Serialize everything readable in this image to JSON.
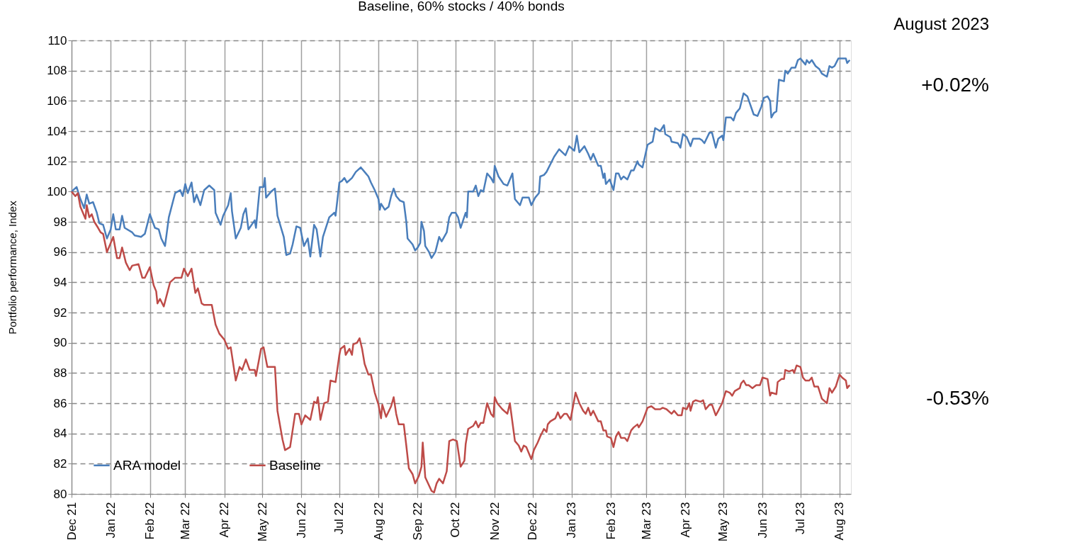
{
  "chart_data": {
    "type": "line",
    "title": "Baseline, 60% stocks / 40% bonds",
    "ylabel": "Portfolio performance, Index",
    "annotations": [
      "August 2023",
      "+0.02%",
      "-0.53%"
    ],
    "xlim": [
      "2021-12-01",
      "2023-08-10"
    ],
    "xticks": [
      {
        "value": "2021-12-01",
        "label": "Dec 21"
      },
      {
        "value": "2022-01-01",
        "label": "Jan 22"
      },
      {
        "value": "2022-02-01",
        "label": "Feb 22"
      },
      {
        "value": "2022-03-01",
        "label": "Mar 22"
      },
      {
        "value": "2022-04-01",
        "label": "Apr 22"
      },
      {
        "value": "2022-05-01",
        "label": "May 22"
      },
      {
        "value": "2022-06-01",
        "label": "Jun 22"
      },
      {
        "value": "2022-07-01",
        "label": "Jul 22"
      },
      {
        "value": "2022-08-01",
        "label": "Aug 22"
      },
      {
        "value": "2022-09-01",
        "label": "Sep 22"
      },
      {
        "value": "2022-10-01",
        "label": "Oct 22"
      },
      {
        "value": "2022-11-01",
        "label": "Nov 22"
      },
      {
        "value": "2022-12-01",
        "label": "Dec 22"
      },
      {
        "value": "2023-01-01",
        "label": "Jan 23"
      },
      {
        "value": "2023-02-01",
        "label": "Feb 23"
      },
      {
        "value": "2023-03-01",
        "label": "Mar 23"
      },
      {
        "value": "2023-04-01",
        "label": "Apr 23"
      },
      {
        "value": "2023-05-01",
        "label": "May 23"
      },
      {
        "value": "2023-06-01",
        "label": "Jun 23"
      },
      {
        "value": "2023-07-01",
        "label": "Jul 23"
      },
      {
        "value": "2023-08-01",
        "label": "Aug 23"
      }
    ],
    "ylim": [
      80,
      110
    ],
    "yticks": [
      80,
      82,
      84,
      86,
      88,
      90,
      92,
      94,
      96,
      98,
      100,
      102,
      104,
      106,
      108,
      110
    ],
    "grid": true,
    "legend": "bottom left",
    "line_style": "solid",
    "series": [
      {
        "name": "ARA model",
        "color": "#4a7ebb",
        "x": [
          "2021-12-01",
          "2021-12-05",
          "2021-12-08",
          "2021-12-11",
          "2021-12-13",
          "2021-12-15",
          "2021-12-18",
          "2021-12-21",
          "2021-12-23",
          "2021-12-26",
          "2021-12-29",
          "2022-01-01",
          "2022-01-03",
          "2022-01-05",
          "2022-01-08",
          "2022-01-10",
          "2022-01-12",
          "2022-01-18",
          "2022-01-20",
          "2022-01-25",
          "2022-01-28",
          "2022-02-01",
          "2022-02-05",
          "2022-02-08",
          "2022-02-10",
          "2022-02-13",
          "2022-02-16",
          "2022-02-21",
          "2022-02-25",
          "2022-02-27",
          "2022-03-01",
          "2022-03-03",
          "2022-03-06",
          "2022-03-08",
          "2022-03-10",
          "2022-03-13",
          "2022-03-16",
          "2022-03-20",
          "2022-03-24",
          "2022-03-25",
          "2022-03-29",
          "2022-03-31",
          "2022-04-04",
          "2022-04-06",
          "2022-04-07",
          "2022-04-10",
          "2022-04-14",
          "2022-04-16",
          "2022-04-18",
          "2022-04-20",
          "2022-04-25",
          "2022-04-26",
          "2022-04-29",
          "2022-05-02",
          "2022-05-03",
          "2022-05-04",
          "2022-05-08",
          "2022-05-11",
          "2022-05-13",
          "2022-05-18",
          "2022-05-20",
          "2022-05-23",
          "2022-05-25",
          "2022-05-28",
          "2022-05-31",
          "2022-06-03",
          "2022-06-06",
          "2022-06-08",
          "2022-06-11",
          "2022-06-13",
          "2022-06-16",
          "2022-06-18",
          "2022-06-23",
          "2022-06-27",
          "2022-06-28",
          "2022-07-01",
          "2022-07-03",
          "2022-07-05",
          "2022-07-07",
          "2022-07-11",
          "2022-07-14",
          "2022-07-18",
          "2022-07-21",
          "2022-07-24",
          "2022-07-26",
          "2022-07-29",
          "2022-08-01",
          "2022-08-02",
          "2022-08-03",
          "2022-08-06",
          "2022-08-09",
          "2022-08-11",
          "2022-08-13",
          "2022-08-15",
          "2022-08-18",
          "2022-08-21",
          "2022-08-23",
          "2022-08-24",
          "2022-08-28",
          "2022-08-30",
          "2022-09-01",
          "2022-09-03",
          "2022-09-04",
          "2022-09-06",
          "2022-09-07",
          "2022-09-10",
          "2022-09-12",
          "2022-09-15",
          "2022-09-18",
          "2022-09-20",
          "2022-09-24",
          "2022-09-26",
          "2022-09-28",
          "2022-10-01",
          "2022-10-03",
          "2022-10-05",
          "2022-10-07",
          "2022-10-09",
          "2022-10-10",
          "2022-10-11",
          "2022-10-15",
          "2022-10-17",
          "2022-10-19",
          "2022-10-21",
          "2022-10-23",
          "2022-10-26",
          "2022-10-29",
          "2022-10-31",
          "2022-11-01",
          "2022-11-04",
          "2022-11-08",
          "2022-11-11",
          "2022-11-15",
          "2022-11-17",
          "2022-11-21",
          "2022-11-23",
          "2022-11-28",
          "2022-11-30",
          "2022-12-03",
          "2022-12-06",
          "2022-12-07",
          "2022-12-10",
          "2022-12-12",
          "2022-12-18",
          "2022-12-22",
          "2022-12-27",
          "2022-12-30",
          "2023-01-03",
          "2023-01-05",
          "2023-01-07",
          "2023-01-11",
          "2023-01-14",
          "2023-01-16",
          "2023-01-18",
          "2023-01-22",
          "2023-01-24",
          "2023-01-26",
          "2023-01-27",
          "2023-01-28",
          "2023-01-31",
          "2023-02-03",
          "2023-02-05",
          "2023-02-07",
          "2023-02-09",
          "2023-02-11",
          "2023-02-14",
          "2023-02-17",
          "2023-02-19",
          "2023-02-22",
          "2023-02-23",
          "2023-02-26",
          "2023-03-02",
          "2023-03-06",
          "2023-03-08",
          "2023-03-12",
          "2023-03-15",
          "2023-03-16",
          "2023-03-20",
          "2023-03-21",
          "2023-03-26",
          "2023-03-28",
          "2023-03-30",
          "2023-04-02",
          "2023-04-05",
          "2023-04-07",
          "2023-04-12",
          "2023-04-14",
          "2023-04-16",
          "2023-04-20",
          "2023-04-22",
          "2023-04-25",
          "2023-04-27",
          "2023-04-30",
          "2023-05-01",
          "2023-05-03",
          "2023-05-07",
          "2023-05-09",
          "2023-05-11",
          "2023-05-14",
          "2023-05-17",
          "2023-05-20",
          "2023-05-25",
          "2023-05-28",
          "2023-05-31",
          "2023-06-02",
          "2023-06-05",
          "2023-06-07",
          "2023-06-08",
          "2023-06-10",
          "2023-06-12",
          "2023-06-14",
          "2023-06-18",
          "2023-06-19",
          "2023-06-21",
          "2023-06-24",
          "2023-06-27",
          "2023-06-29",
          "2023-07-01",
          "2023-07-05",
          "2023-07-06",
          "2023-07-08",
          "2023-07-10",
          "2023-07-13",
          "2023-07-16",
          "2023-07-18",
          "2023-07-22",
          "2023-07-24",
          "2023-07-26",
          "2023-07-28",
          "2023-07-31",
          "2023-08-04",
          "2023-08-06",
          "2023-08-07",
          "2023-08-09"
        ],
        "values": [
          100,
          100.3,
          99.5,
          98.9,
          99.8,
          99.2,
          99.3,
          98.6,
          97.9,
          97.8,
          96.9,
          97.5,
          98.5,
          97.5,
          97.5,
          98.4,
          97.6,
          97.3,
          97.1,
          97.0,
          97.2,
          98.5,
          97.6,
          97.5,
          96.9,
          96.4,
          98.3,
          99.9,
          100.1,
          99.7,
          100.5,
          99.9,
          100.6,
          99.3,
          99.8,
          99.1,
          100.1,
          100.4,
          100.1,
          98.6,
          97.8,
          98.4,
          99.1,
          99.9,
          98.7,
          96.9,
          97.6,
          98.5,
          98.9,
          97.5,
          98.1,
          97.6,
          100.3,
          100.3,
          100.9,
          99.6,
          100.0,
          100.2,
          98.4,
          97.0,
          95.8,
          95.9,
          96.5,
          97.7,
          97.6,
          96.4,
          96.9,
          95.7,
          97.8,
          97.5,
          95.7,
          97.0,
          98.3,
          98.6,
          98.4,
          100.6,
          100.7,
          100.9,
          100.6,
          100.9,
          101.3,
          101.6,
          101.3,
          101.0,
          100.6,
          100.1,
          99.5,
          98.8,
          99.2,
          98.8,
          99.0,
          99.7,
          100.2,
          99.7,
          99.4,
          99.3,
          98.0,
          96.9,
          96.5,
          96.1,
          96.3,
          96.6,
          98.0,
          97.4,
          96.4,
          96.0,
          95.6,
          96.0,
          97.0,
          96.7,
          97.3,
          98.3,
          98.6,
          98.6,
          98.3,
          97.6,
          98.1,
          98.6,
          98.3,
          100.0,
          100.0,
          100.4,
          99.7,
          100.1,
          100.0,
          101.2,
          100.9,
          100.6,
          101.7,
          101.0,
          100.5,
          100.4,
          101.2,
          99.5,
          99.1,
          99.6,
          99.6,
          99.1,
          99.6,
          99.9,
          101.0,
          101.1,
          101.3,
          102.3,
          102.8,
          102.4,
          103.0,
          102.7,
          103.7,
          102.6,
          103.0,
          102.5,
          102.1,
          102.5,
          101.7,
          101.7,
          100.9,
          101.2,
          100.5,
          100.8,
          100.1,
          101.2,
          101.2,
          100.8,
          101.0,
          100.8,
          101.4,
          101.4,
          102.0,
          101.8,
          101.6,
          103.1,
          103.3,
          104.2,
          104.0,
          104.4,
          103.8,
          103.6,
          103.3,
          103.2,
          102.9,
          103.8,
          103.6,
          103.0,
          103.5,
          103.5,
          103.4,
          103.2,
          103.9,
          103.9,
          102.9,
          103.5,
          103.7,
          103.4,
          104.9,
          104.9,
          104.7,
          105.2,
          105.5,
          106.5,
          106.3,
          105.1,
          105.0,
          105.6,
          106.2,
          106.3,
          106.0,
          104.9,
          105.2,
          105.3,
          107.4,
          107.3,
          108.0,
          107.8,
          108.2,
          108.2,
          108.7,
          108.8,
          108.4,
          108.7,
          108.5,
          108.7,
          108.3,
          108.1,
          107.8,
          107.6,
          108.3,
          108.2,
          108.3,
          108.8,
          108.8,
          108.8,
          108.5,
          108.7
        ]
      },
      {
        "name": "Baseline",
        "color": "#be4b48",
        "x": [
          "2021-12-01",
          "2021-12-04",
          "2021-12-06",
          "2021-12-08",
          "2021-12-12",
          "2021-12-13",
          "2021-12-15",
          "2021-12-17",
          "2021-12-19",
          "2021-12-22",
          "2021-12-24",
          "2021-12-26",
          "2021-12-29",
          "2021-12-31",
          "2022-01-03",
          "2022-01-06",
          "2022-01-08",
          "2022-01-10",
          "2022-01-13",
          "2022-01-16",
          "2022-01-18",
          "2022-01-23",
          "2022-01-26",
          "2022-01-28",
          "2022-02-01",
          "2022-02-04",
          "2022-02-06",
          "2022-02-07",
          "2022-02-09",
          "2022-02-12",
          "2022-02-17",
          "2022-02-21",
          "2022-02-26",
          "2022-02-28",
          "2022-03-03",
          "2022-03-06",
          "2022-03-09",
          "2022-03-11",
          "2022-03-14",
          "2022-03-16",
          "2022-03-22",
          "2022-03-25",
          "2022-03-28",
          "2022-04-01",
          "2022-04-04",
          "2022-04-06",
          "2022-04-10",
          "2022-04-13",
          "2022-04-15",
          "2022-04-18",
          "2022-04-21",
          "2022-04-25",
          "2022-04-26",
          "2022-04-30",
          "2022-05-02",
          "2022-05-05",
          "2022-05-11",
          "2022-05-13",
          "2022-05-17",
          "2022-05-19",
          "2022-05-23",
          "2022-05-27",
          "2022-05-30",
          "2022-06-01",
          "2022-06-04",
          "2022-06-08",
          "2022-06-11",
          "2022-06-13",
          "2022-06-14",
          "2022-06-16",
          "2022-06-19",
          "2022-06-22",
          "2022-06-24",
          "2022-06-28",
          "2022-07-01",
          "2022-07-02",
          "2022-07-05",
          "2022-07-06",
          "2022-07-09",
          "2022-07-11",
          "2022-07-12",
          "2022-07-15",
          "2022-07-17",
          "2022-07-19",
          "2022-07-21",
          "2022-07-24",
          "2022-07-26",
          "2022-07-29",
          "2022-08-01",
          "2022-08-03",
          "2022-08-04",
          "2022-08-07",
          "2022-08-11",
          "2022-08-13",
          "2022-08-15",
          "2022-08-17",
          "2022-08-21",
          "2022-08-23",
          "2022-08-25",
          "2022-08-28",
          "2022-08-30",
          "2022-09-02",
          "2022-09-04",
          "2022-09-05",
          "2022-09-06",
          "2022-09-07",
          "2022-09-12",
          "2022-09-14",
          "2022-09-16",
          "2022-09-18",
          "2022-09-21",
          "2022-09-24",
          "2022-09-26",
          "2022-09-29",
          "2022-10-02",
          "2022-10-05",
          "2022-10-08",
          "2022-10-09",
          "2022-10-11",
          "2022-10-15",
          "2022-10-17",
          "2022-10-19",
          "2022-10-21",
          "2022-10-23",
          "2022-10-26",
          "2022-10-29",
          "2022-10-31",
          "2022-11-01",
          "2022-11-03",
          "2022-11-07",
          "2022-11-11",
          "2022-11-13",
          "2022-11-17",
          "2022-11-20",
          "2022-11-22",
          "2022-11-24",
          "2022-11-26",
          "2022-11-28",
          "2022-11-30",
          "2022-12-02",
          "2022-12-05",
          "2022-12-07",
          "2022-12-10",
          "2022-12-12",
          "2022-12-13",
          "2022-12-15",
          "2022-12-19",
          "2022-12-21",
          "2022-12-23",
          "2022-12-26",
          "2022-12-28",
          "2022-12-31",
          "2023-01-04",
          "2023-01-07",
          "2023-01-10",
          "2023-01-12",
          "2023-01-14",
          "2023-01-16",
          "2023-01-18",
          "2023-01-22",
          "2023-01-24",
          "2023-01-26",
          "2023-01-28",
          "2023-01-29",
          "2023-02-01",
          "2023-02-03",
          "2023-02-05",
          "2023-02-07",
          "2023-02-09",
          "2023-02-12",
          "2023-02-14",
          "2023-02-17",
          "2023-02-19",
          "2023-02-22",
          "2023-02-23",
          "2023-02-26",
          "2023-03-02",
          "2023-03-05",
          "2023-03-08",
          "2023-03-12",
          "2023-03-14",
          "2023-03-17",
          "2023-03-21",
          "2023-03-23",
          "2023-03-26",
          "2023-03-29",
          "2023-03-30",
          "2023-04-02",
          "2023-04-04",
          "2023-04-05",
          "2023-04-07",
          "2023-04-09",
          "2023-04-13",
          "2023-04-15",
          "2023-04-17",
          "2023-04-20",
          "2023-04-22",
          "2023-04-25",
          "2023-04-27",
          "2023-04-30",
          "2023-05-03",
          "2023-05-06",
          "2023-05-08",
          "2023-05-10",
          "2023-05-14",
          "2023-05-15",
          "2023-05-17",
          "2023-05-19",
          "2023-05-21",
          "2023-05-24",
          "2023-05-27",
          "2023-05-30",
          "2023-06-01",
          "2023-06-05",
          "2023-06-07",
          "2023-06-08",
          "2023-06-12",
          "2023-06-13",
          "2023-06-16",
          "2023-06-18",
          "2023-06-19",
          "2023-06-22",
          "2023-06-25",
          "2023-06-26",
          "2023-06-28",
          "2023-07-01",
          "2023-07-03",
          "2023-07-05",
          "2023-07-08",
          "2023-07-10",
          "2023-07-12",
          "2023-07-15",
          "2023-07-18",
          "2023-07-22",
          "2023-07-24",
          "2023-07-26",
          "2023-07-29",
          "2023-08-01",
          "2023-08-03",
          "2023-08-06",
          "2023-08-07",
          "2023-08-09"
        ],
        "values": [
          100,
          99.7,
          99.9,
          99.0,
          98.2,
          99.1,
          98.3,
          98.5,
          98.0,
          97.6,
          97.3,
          97.2,
          96.0,
          96.4,
          97.0,
          95.6,
          95.6,
          96.3,
          95.3,
          94.8,
          95.1,
          95.2,
          94.3,
          94.3,
          95.0,
          93.8,
          93.4,
          92.6,
          92.9,
          92.4,
          94.0,
          94.3,
          94.3,
          94.9,
          94.4,
          94.9,
          93.3,
          93.6,
          92.6,
          92.5,
          92.5,
          91.2,
          90.6,
          90.2,
          89.6,
          89.7,
          87.5,
          88.4,
          88.2,
          88.9,
          88.2,
          88.2,
          87.8,
          89.6,
          89.7,
          88.4,
          88.4,
          85.5,
          83.6,
          82.9,
          83.1,
          85.3,
          85.3,
          84.6,
          85.2,
          84.9,
          86.1,
          86.0,
          86.4,
          84.9,
          86.0,
          86.1,
          87.5,
          87.4,
          89.2,
          89.6,
          89.8,
          89.2,
          89.6,
          89.2,
          89.9,
          90.0,
          90.3,
          89.6,
          88.6,
          87.9,
          87.9,
          86.7,
          85.9,
          85.0,
          85.9,
          85.1,
          85.8,
          86.4,
          85.3,
          84.6,
          84.6,
          83.2,
          81.7,
          81.3,
          80.7,
          81.2,
          81.8,
          83.4,
          82.3,
          81.1,
          80.2,
          80.1,
          80.7,
          81.0,
          80.7,
          81.5,
          83.5,
          83.6,
          83.5,
          81.8,
          82.2,
          83.3,
          84.3,
          84.5,
          84.8,
          84.4,
          84.7,
          84.7,
          86.0,
          85.3,
          85.1,
          86.4,
          86.0,
          85.6,
          85.3,
          86.0,
          83.5,
          83.2,
          82.8,
          83.2,
          83.1,
          82.7,
          82.3,
          82.9,
          83.4,
          83.8,
          84.3,
          84.1,
          84.6,
          84.8,
          85.0,
          85.4,
          85.0,
          85.3,
          85.3,
          84.9,
          86.7,
          86.0,
          85.5,
          85.3,
          85.7,
          85.2,
          85.5,
          84.8,
          84.8,
          84.2,
          84.2,
          83.8,
          83.7,
          83.1,
          83.8,
          84.1,
          83.7,
          83.7,
          83.5,
          84.2,
          84.4,
          84.6,
          84.4,
          84.8,
          85.7,
          85.8,
          85.6,
          85.6,
          85.7,
          85.6,
          85.3,
          85.5,
          85.2,
          85.2,
          85.7,
          85.6,
          86.0,
          85.5,
          86.1,
          86.2,
          86.1,
          86.2,
          85.6,
          85.9,
          85.9,
          85.2,
          85.5,
          86.0,
          86.8,
          86.7,
          86.5,
          86.8,
          87.0,
          87.3,
          87.5,
          87.2,
          87.2,
          87.0,
          87.2,
          87.2,
          87.7,
          87.6,
          86.5,
          86.7,
          86.6,
          87.4,
          87.6,
          87.6,
          88.2,
          88.1,
          88.2,
          88.0,
          88.5,
          88.4,
          87.7,
          87.5,
          87.5,
          87.7,
          87.1,
          87.1,
          86.3,
          86.0,
          87.0,
          86.7,
          87.1,
          87.9,
          87.7,
          87.5,
          87.0,
          87.2
        ]
      }
    ]
  }
}
